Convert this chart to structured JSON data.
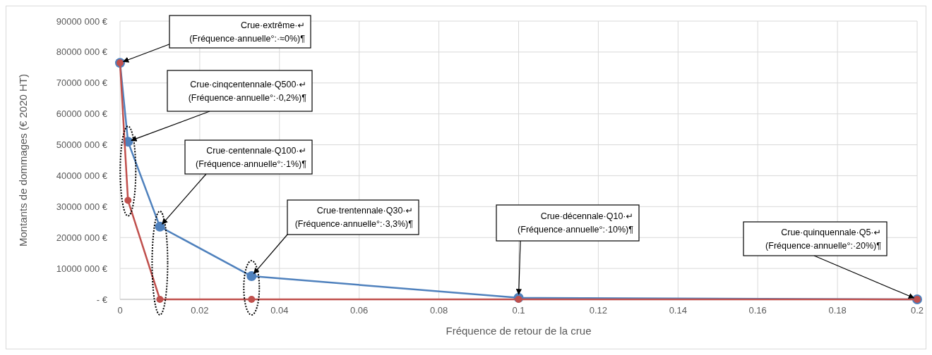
{
  "chart_data": {
    "type": "line",
    "xlabel": "Fréquence de retour de la crue",
    "ylabel": "Montants de dommages (€ 2020 HT)",
    "xlim": [
      0,
      0.2
    ],
    "xticks": [
      0,
      0.02,
      0.04,
      0.06,
      0.08,
      0.1,
      0.12,
      0.14,
      0.16,
      0.18,
      0.2
    ],
    "ylim": [
      0,
      90000000
    ],
    "yticks": [
      {
        "value": 0,
        "label": "-  €"
      },
      {
        "value": 10000000,
        "label": "10000 000 €"
      },
      {
        "value": 20000000,
        "label": "20000 000 €"
      },
      {
        "value": 30000000,
        "label": "30000 000 €"
      },
      {
        "value": 40000000,
        "label": "40000 000 €"
      },
      {
        "value": 50000000,
        "label": "50000 000 €"
      },
      {
        "value": 60000000,
        "label": "60000 000 €"
      },
      {
        "value": 70000000,
        "label": "70000 000 €"
      },
      {
        "value": 80000000,
        "label": "80000 000 €"
      },
      {
        "value": 90000000,
        "label": "90000 000 €"
      }
    ],
    "grid": true,
    "marker": "circle",
    "line_style": "solid",
    "x": [
      0,
      0.002,
      0.01,
      0.033,
      0.1,
      0.2
    ],
    "series": [
      {
        "color": "#4f81bd",
        "values": [
          76500000,
          51000000,
          23500000,
          7500000,
          500000,
          0
        ]
      },
      {
        "color": "#c0504d",
        "values": [
          76500000,
          32000000,
          0,
          0,
          0,
          0
        ]
      }
    ],
    "annotations": [
      "Crue·extrême·↵\n(Fréquence·annuelle°:·≈0%)¶",
      {
        "text": "Crue·cinqcentennale·Q500·↵\n(Fréquence·annuelle°:·0,2%)¶",
        "x": 0.002,
        "y": 51000000
      },
      {
        "text": "Crue·centennale·Q100·↵\n(Fréquence·annuelle°:·1%)¶",
        "x": 0.01,
        "y": 23500000
      },
      {
        "text": "Crue·trentennale·Q30·↵\n(Fréquence·annuelle°:·3,3%)¶",
        "x": 0.033,
        "y": 7500000
      },
      {
        "text": "Crue·décennale·Q10·↵\n(Fréquence·annuelle°:·10%)¶",
        "x": 0.1,
        "y": 500000
      },
      {
        "text": "Crue·quinquennale·Q5·↵\n(Fréquence·annuelle°:·20%)¶",
        "x": 0.2,
        "y": 0
      }
    ]
  }
}
